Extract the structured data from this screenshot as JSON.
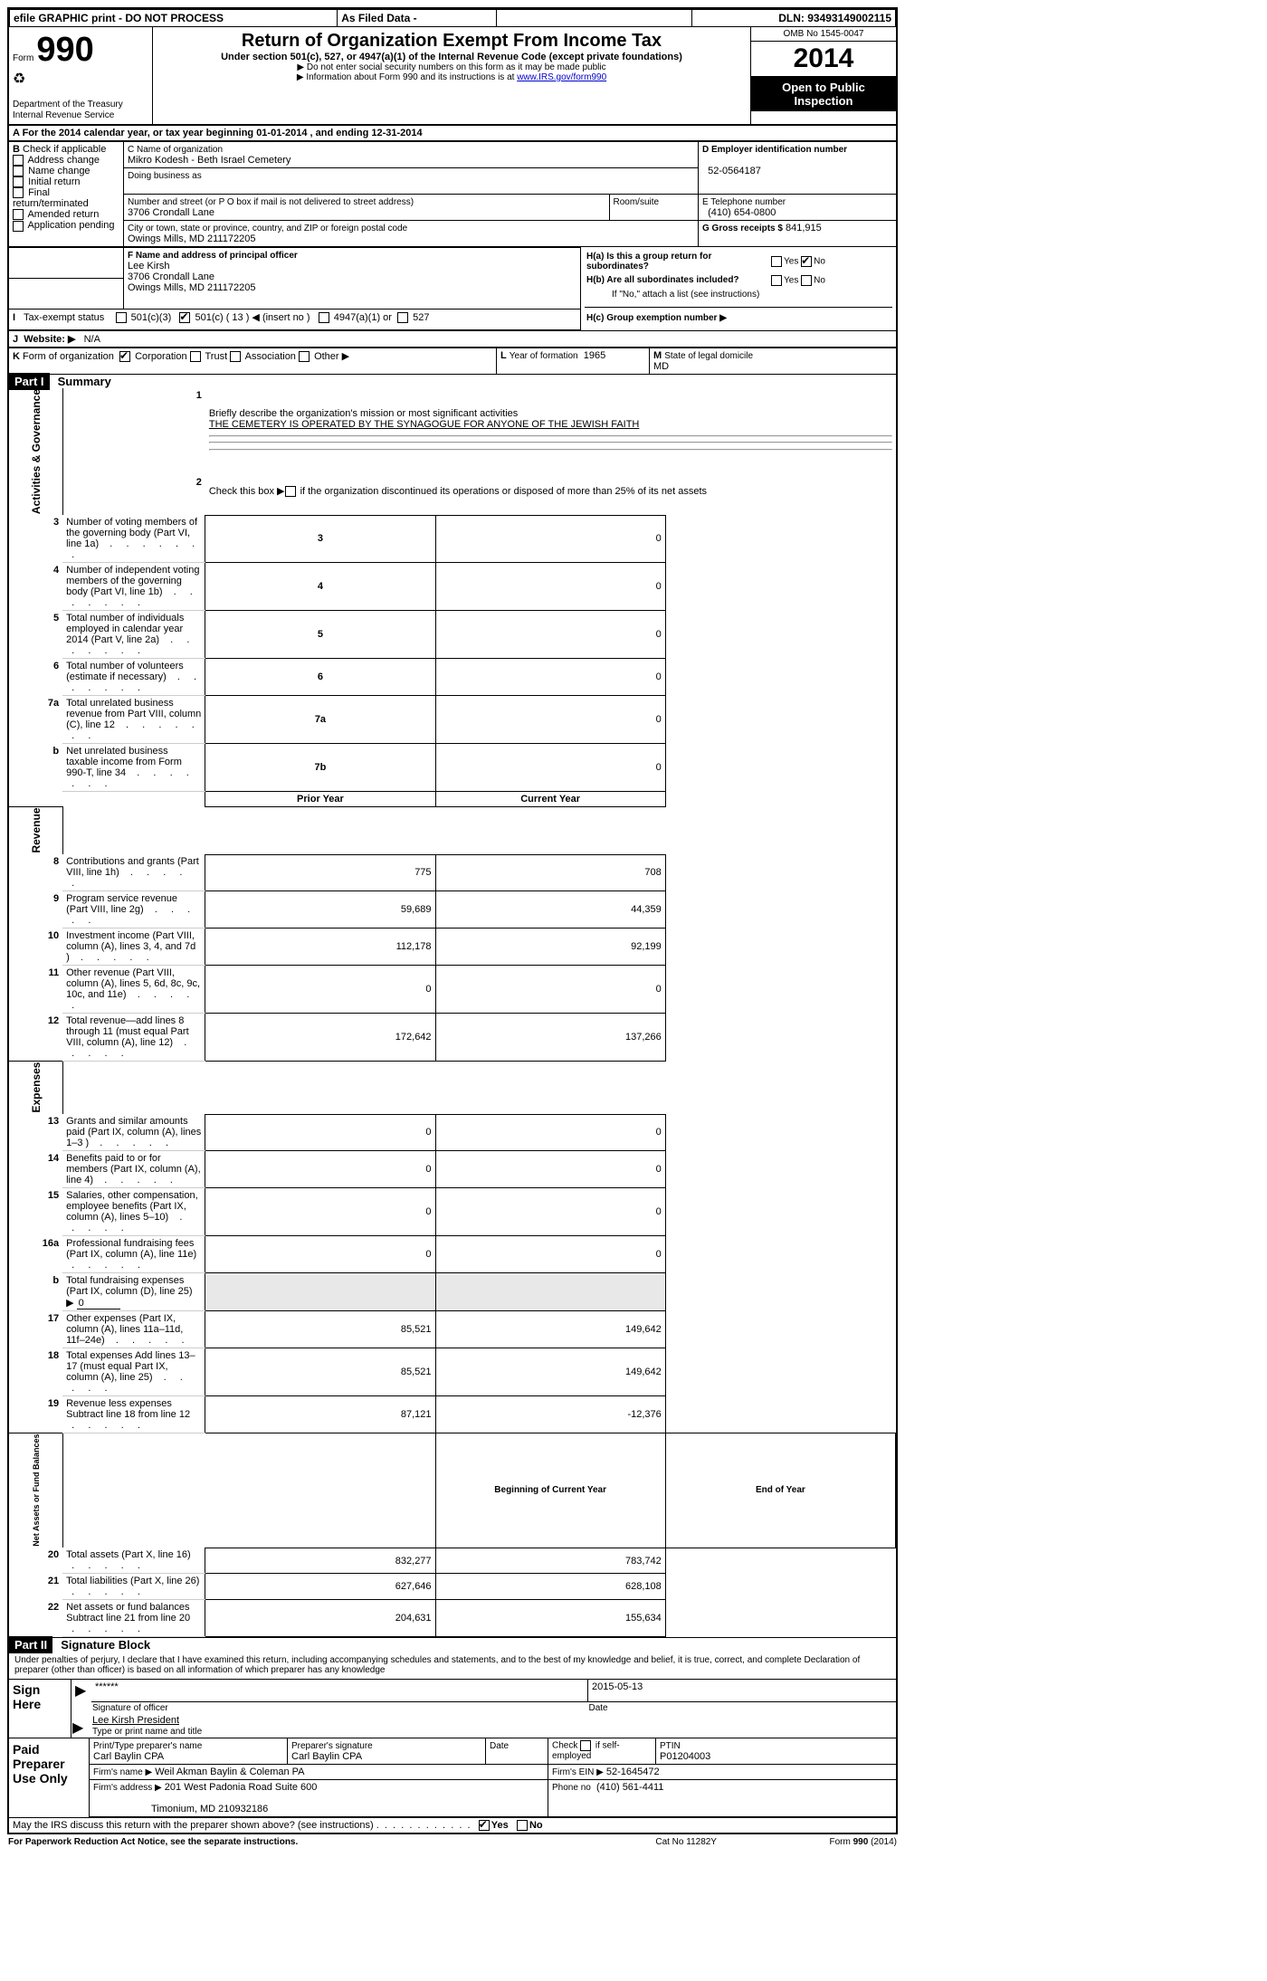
{
  "topbar": {
    "efile": "efile GRAPHIC print - DO NOT PROCESS",
    "asfiled": "As Filed Data -",
    "dln_label": "DLN:",
    "dln": "93493149002115"
  },
  "header": {
    "form_label": "Form",
    "form_number": "990",
    "dept": "Department of the Treasury",
    "irs": "Internal Revenue Service",
    "title": "Return of Organization Exempt From Income Tax",
    "subtitle": "Under section 501(c), 527, or 4947(a)(1) of the Internal Revenue Code (except private foundations)",
    "note1": "▶ Do not enter social security numbers on this form as it may be made public",
    "note2_pre": "▶ Information about Form 990 and its instructions is at ",
    "note2_link": "www.IRS.gov/form990",
    "omb": "OMB No 1545-0047",
    "year": "2014",
    "open": "Open to Public Inspection"
  },
  "sectionA": {
    "line": "A For the 2014 calendar year, or tax year beginning 01-01-2014   , and ending 12-31-2014"
  },
  "sectionB": {
    "label": "B",
    "check_label": "Check if applicable",
    "items": [
      "Address change",
      "Name change",
      "Initial return",
      "Final return/terminated",
      "Amended return",
      "Application pending"
    ]
  },
  "sectionC": {
    "label_name": "C Name of organization",
    "name": "Mikro Kodesh - Beth Israel Cemetery",
    "dba_label": "Doing business as",
    "dba": "",
    "street_label": "Number and street (or P O  box if mail is not delivered to street address)",
    "room_label": "Room/suite",
    "street": "3706 Crondall Lane",
    "city_label": "City or town, state or province, country, and ZIP or foreign postal code",
    "city": "Owings Mills, MD  211172205"
  },
  "sectionD": {
    "label": "D Employer identification number",
    "value": "52-0564187"
  },
  "sectionE": {
    "label": "E Telephone number",
    "value": "(410) 654-0800"
  },
  "sectionG": {
    "label": "G Gross receipts $",
    "value": "841,915"
  },
  "sectionF": {
    "label": "F   Name and address of principal officer",
    "name": "Lee Kirsh",
    "street": "3706 Crondall Lane",
    "city": "Owings Mills, MD  211172205"
  },
  "sectionH": {
    "ha": "H(a)  Is this a group return for subordinates?",
    "ha_yes": "Yes",
    "ha_no": "No",
    "hb": "H(b)  Are all subordinates included?",
    "hb_yes": "Yes",
    "hb_no": "No",
    "hb_note": "If \"No,\" attach a list  (see instructions)",
    "hc": "H(c)   Group exemption number ▶"
  },
  "sectionI": {
    "label": "I",
    "text": "Tax-exempt status",
    "c3": "501(c)(3)",
    "c": "501(c) ( 13 ) ◀ (insert no )",
    "a1": "4947(a)(1) or",
    "s527": "527"
  },
  "sectionJ": {
    "label": "J",
    "text": "Website: ▶",
    "value": "N/A"
  },
  "sectionK": {
    "label": "K",
    "text": "Form of organization",
    "corp": "Corporation",
    "trust": "Trust",
    "assoc": "Association",
    "other": "Other ▶"
  },
  "sectionL": {
    "label": "L",
    "text": "Year of formation",
    "value": "1965"
  },
  "sectionM": {
    "label": "M",
    "text": "State of legal domicile",
    "value": "MD"
  },
  "part1": {
    "header": "Part I",
    "title": "Summary",
    "q1_label": "1",
    "q1": "Briefly describe the organization's mission or most significant activities",
    "q1_val": "THE CEMETERY IS OPERATED BY THE SYNAGOGUE FOR ANYONE OF THE JEWISH FAITH",
    "q2_label": "2",
    "q2": "Check this box ▶       if the organization discontinued its operations or disposed of more than 25% of its net assets",
    "rows_ag": [
      {
        "n": "3",
        "d": "Number of voting members of the governing body (Part VI, line 1a)",
        "k": "3",
        "v": "0"
      },
      {
        "n": "4",
        "d": "Number of independent voting members of the governing body (Part VI, line 1b)",
        "k": "4",
        "v": "0"
      },
      {
        "n": "5",
        "d": "Total number of individuals employed in calendar year 2014 (Part V, line 2a)",
        "k": "5",
        "v": "0"
      },
      {
        "n": "6",
        "d": "Total number of volunteers (estimate if necessary)",
        "k": "6",
        "v": "0"
      },
      {
        "n": "7a",
        "d": "Total unrelated business revenue from Part VIII, column (C), line 12",
        "k": "7a",
        "v": "0"
      },
      {
        "n": "b",
        "d": "Net unrelated business taxable income from Form 990-T, line 34",
        "k": "7b",
        "v": "0"
      }
    ],
    "col_py": "Prior Year",
    "col_cy": "Current Year",
    "rows_rev": [
      {
        "n": "8",
        "d": "Contributions and grants (Part VIII, line 1h)",
        "py": "775",
        "cy": "708"
      },
      {
        "n": "9",
        "d": "Program service revenue (Part VIII, line 2g)",
        "py": "59,689",
        "cy": "44,359"
      },
      {
        "n": "10",
        "d": "Investment income (Part VIII, column (A), lines 3, 4, and 7d )",
        "py": "112,178",
        "cy": "92,199"
      },
      {
        "n": "11",
        "d": "Other revenue (Part VIII, column (A), lines 5, 6d, 8c, 9c, 10c, and 11e)",
        "py": "0",
        "cy": "0"
      },
      {
        "n": "12",
        "d": "Total revenue—add lines 8 through 11 (must equal Part VIII, column (A), line 12)",
        "py": "172,642",
        "cy": "137,266"
      }
    ],
    "rows_exp": [
      {
        "n": "13",
        "d": "Grants and similar amounts paid (Part IX, column (A), lines 1–3 )",
        "py": "0",
        "cy": "0"
      },
      {
        "n": "14",
        "d": "Benefits paid to or for members (Part IX, column (A), line 4)",
        "py": "0",
        "cy": "0"
      },
      {
        "n": "15",
        "d": "Salaries, other compensation, employee benefits (Part IX, column (A), lines 5–10)",
        "py": "0",
        "cy": "0"
      },
      {
        "n": "16a",
        "d": "Professional fundraising fees (Part IX, column (A), line 11e)",
        "py": "0",
        "cy": "0"
      }
    ],
    "row_16b": {
      "n": "b",
      "d": "Total fundraising expenses (Part IX, column (D), line 25) ▶",
      "v": "0"
    },
    "rows_exp2": [
      {
        "n": "17",
        "d": "Other expenses (Part IX, column (A), lines 11a–11d, 11f–24e)",
        "py": "85,521",
        "cy": "149,642"
      },
      {
        "n": "18",
        "d": "Total expenses  Add lines 13–17 (must equal Part IX, column (A), line 25)",
        "py": "85,521",
        "cy": "149,642"
      },
      {
        "n": "19",
        "d": "Revenue less expenses  Subtract line 18 from line 12",
        "py": "87,121",
        "cy": "-12,376"
      }
    ],
    "col_boy": "Beginning of Current Year",
    "col_eoy": "End of Year",
    "rows_na": [
      {
        "n": "20",
        "d": "Total assets (Part X, line 16)",
        "py": "832,277",
        "cy": "783,742"
      },
      {
        "n": "21",
        "d": "Total liabilities (Part X, line 26)",
        "py": "627,646",
        "cy": "628,108"
      },
      {
        "n": "22",
        "d": "Net assets or fund balances  Subtract line 21 from line 20",
        "py": "204,631",
        "cy": "155,634"
      }
    ],
    "side_ag": "Activities & Governance",
    "side_rev": "Revenue",
    "side_exp": "Expenses",
    "side_na": "Net Assets or Fund Balances"
  },
  "part2": {
    "header": "Part II",
    "title": "Signature Block",
    "perjury": "Under penalties of perjury, I declare that I have examined this return, including accompanying schedules and statements, and to the best of my knowledge and belief, it is true, correct, and complete  Declaration of preparer (other than officer) is based on all information of which preparer has any knowledge",
    "sign_here": "Sign Here",
    "sig_stars": "******",
    "sig_label": "Signature of officer",
    "sig_date": "2015-05-13",
    "date_label": "Date",
    "sig_name": "Lee Kirsh President",
    "sig_name_label": "Type or print name and title",
    "paid": "Paid Preparer Use Only",
    "prep_name_label": "Print/Type preparer's name",
    "prep_name": "Carl Baylin CPA",
    "prep_sig_label": "Preparer's signature",
    "prep_sig": "Carl Baylin CPA",
    "prep_date_label": "Date",
    "check_if": "Check        if self-employed",
    "ptin_label": "PTIN",
    "ptin": "P01204003",
    "firm_name_label": "Firm's name    ▶",
    "firm_name": "Weil Akman Baylin & Coleman PA",
    "firm_ein_label": "Firm's EIN ▶",
    "firm_ein": "52-1645472",
    "firm_addr_label": "Firm's address ▶",
    "firm_addr1": "201 West Padonia Road Suite 600",
    "firm_addr2": "Timonium, MD  210932186",
    "phone_label": "Phone no",
    "phone": "(410) 561-4411",
    "discuss": "May the IRS discuss this return with the preparer shown above? (see instructions)",
    "yes": "Yes",
    "no": "No"
  },
  "footer": {
    "pra": "For Paperwork Reduction Act Notice, see the separate instructions.",
    "cat": "Cat No 11282Y",
    "form": "Form 990 (2014)"
  }
}
